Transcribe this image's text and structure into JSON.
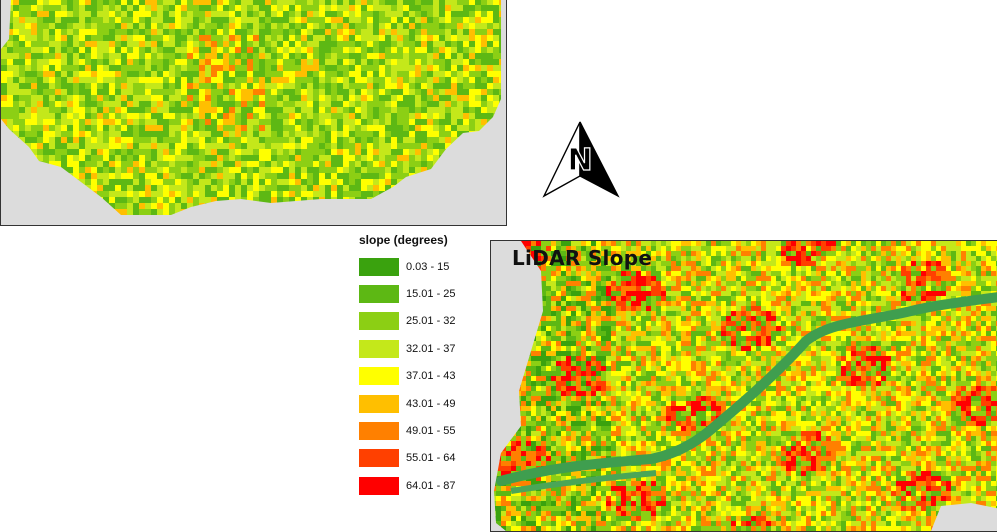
{
  "legend": {
    "title": "slope (degrees)",
    "classes": [
      {
        "label": "0.03 - 15",
        "color": "#3aa20e"
      },
      {
        "label": "15.01 - 25",
        "color": "#5db814"
      },
      {
        "label": "25.01 - 32",
        "color": "#8ccf14"
      },
      {
        "label": "32.01 - 37",
        "color": "#c4e81a"
      },
      {
        "label": "37.01 - 43",
        "color": "#ffff00"
      },
      {
        "label": "43.01 - 49",
        "color": "#ffbf00"
      },
      {
        "label": "49.01 - 55",
        "color": "#ff8000"
      },
      {
        "label": "55.01 - 64",
        "color": "#ff4000"
      },
      {
        "label": "64.01 - 87",
        "color": "#ff0000"
      }
    ]
  },
  "bottom_map": {
    "title": "LiDAR Slope"
  },
  "north_arrow": {
    "label": "N",
    "icon": "north-arrow-icon"
  },
  "colors": {
    "nodata": "#dcdcdc",
    "river": "#3f9e4f",
    "frame": "#333333"
  }
}
